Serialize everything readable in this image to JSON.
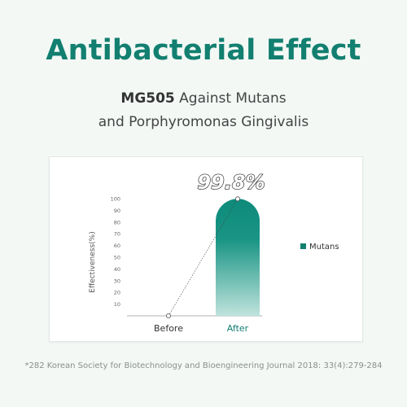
{
  "header": {
    "title": "Antibacterial Effect",
    "subtitle_bold": "MG505",
    "subtitle_rest_line1": " Against Mutans",
    "subtitle_line2": "and Porphyromonas Gingivalis"
  },
  "footnote": "*282 Korean Society for Biotechnology and Bioengineering Journal 2018: 33(4):279-284",
  "colors": {
    "accent": "#127f70",
    "bar_top": "#0d8a7a",
    "bar_bottom": "#b9e0d9",
    "text_dark": "#333333"
  },
  "chart_data": {
    "type": "bar",
    "categories": [
      "Before",
      "After"
    ],
    "series": [
      {
        "name": "Mutans",
        "values": [
          0,
          99.8
        ]
      }
    ],
    "ylabel": "Effectiveness(%)",
    "ylim": [
      0,
      100
    ],
    "yticks": [
      10,
      20,
      30,
      40,
      50,
      60,
      70,
      80,
      90,
      100
    ],
    "annotation": "99.8%",
    "legend_position": "right",
    "grid": false
  }
}
